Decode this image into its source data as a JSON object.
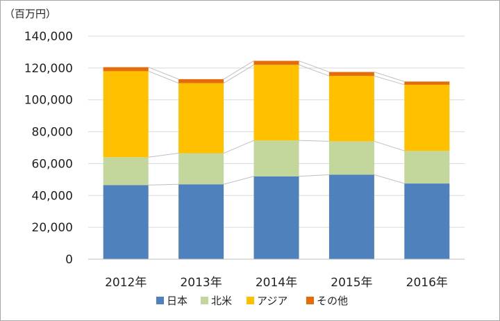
{
  "chart_data": {
    "type": "bar",
    "stacked": true,
    "unit_label": "（百万円）",
    "title": "",
    "xlabel": "",
    "ylabel": "",
    "ylim": [
      0,
      140000
    ],
    "y_ticks": [
      "0",
      "20,000",
      "40,000",
      "60,000",
      "80,000",
      "100,000",
      "120,000",
      "140,000"
    ],
    "y_tick_values": [
      0,
      20000,
      40000,
      60000,
      80000,
      100000,
      120000,
      140000
    ],
    "categories": [
      "2012年",
      "2013年",
      "2014年",
      "2015年",
      "2016年"
    ],
    "series": [
      {
        "name": "日本",
        "color": "#4f81bd",
        "values": [
          46500,
          47000,
          52000,
          53000,
          47500
        ]
      },
      {
        "name": "北米",
        "color": "#c3d69b",
        "values": [
          17500,
          19500,
          22500,
          21000,
          20500
        ]
      },
      {
        "name": "アジア",
        "color": "#ffc000",
        "values": [
          54000,
          44000,
          47500,
          41000,
          41500
        ]
      },
      {
        "name": "その他",
        "color": "#e46c0a",
        "values": [
          2500,
          2500,
          2500,
          2500,
          2000
        ]
      }
    ],
    "grid": true,
    "series_connector_lines": true,
    "legend_position": "bottom"
  }
}
